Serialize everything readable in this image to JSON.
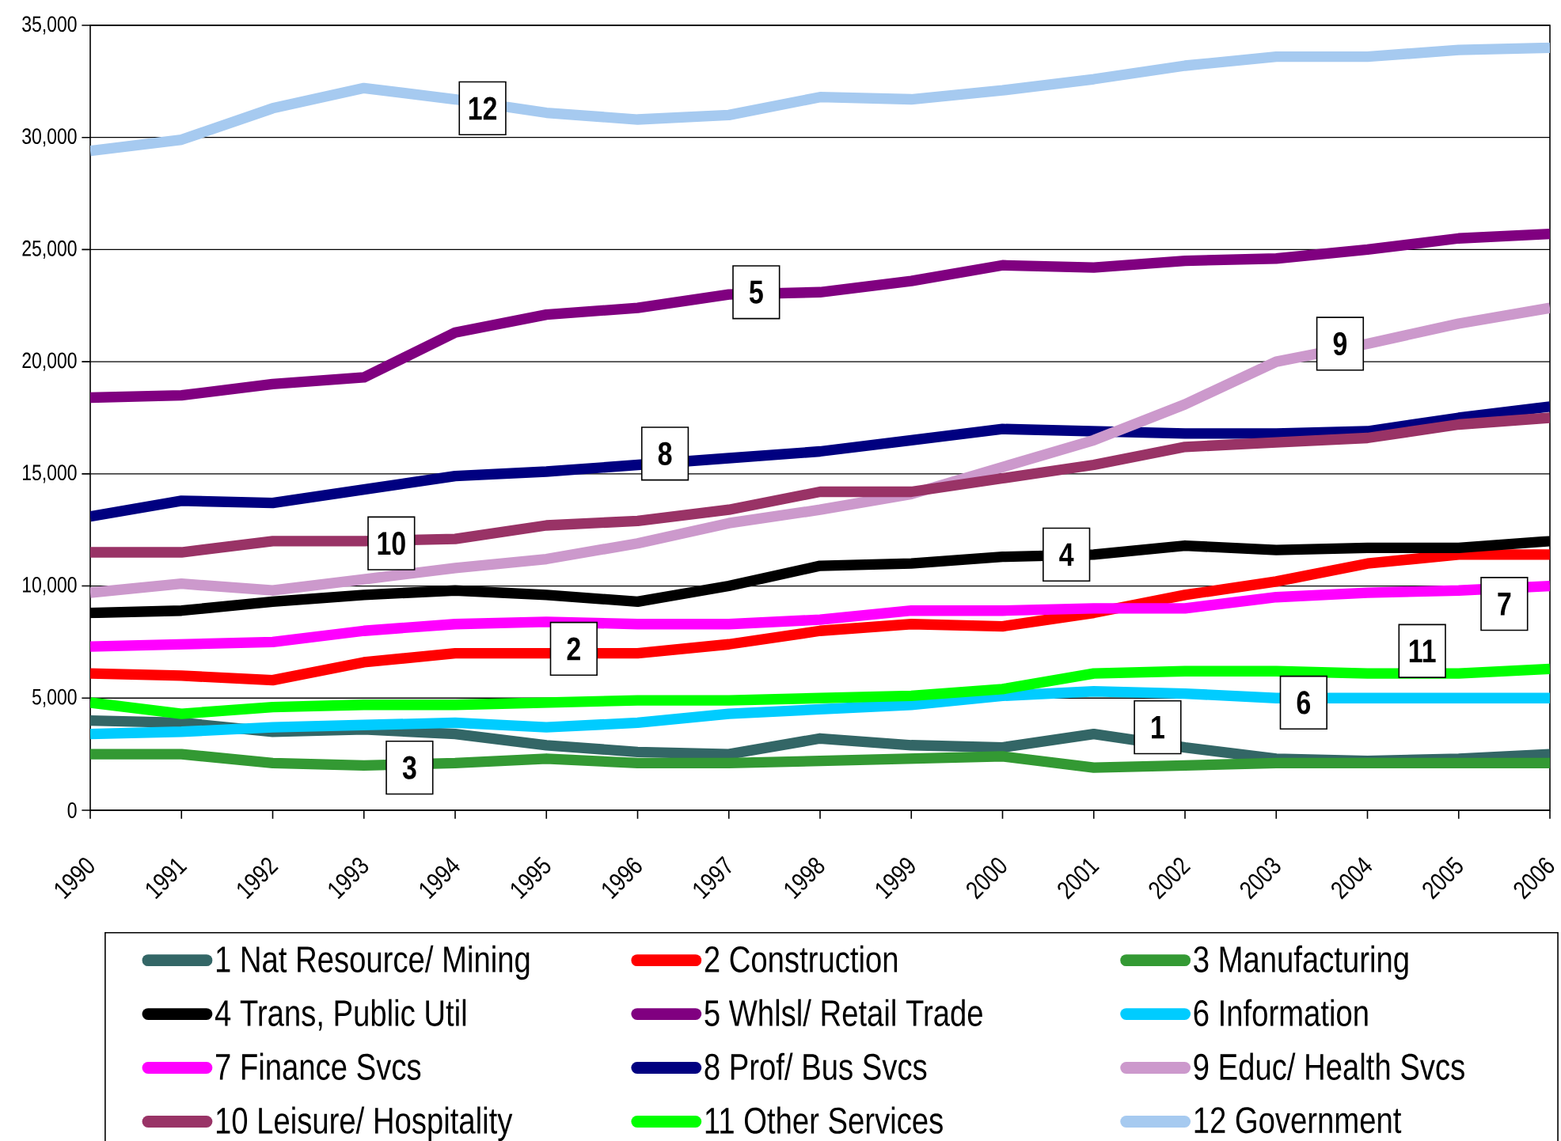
{
  "chart_data": {
    "type": "line",
    "x": [
      1990,
      1991,
      1992,
      1993,
      1994,
      1995,
      1996,
      1997,
      1998,
      1999,
      2000,
      2001,
      2002,
      2003,
      2004,
      2005,
      2006
    ],
    "xlim": [
      1990,
      2006
    ],
    "xticks": [
      1990,
      1991,
      1992,
      1993,
      1994,
      1995,
      1996,
      1997,
      1998,
      1999,
      2000,
      2001,
      2002,
      2003,
      2004,
      2005,
      2006
    ],
    "ylim": [
      0,
      35000
    ],
    "yticks": [
      0,
      {
        "value": 5000,
        "label": "5,000"
      },
      {
        "value": 10000,
        "label": "10,000"
      },
      {
        "value": 15000,
        "label": "15,000"
      },
      {
        "value": 20000,
        "label": "20,000"
      },
      {
        "value": 25000,
        "label": "25,000"
      },
      {
        "value": 30000,
        "label": "30,000"
      },
      {
        "value": 35000,
        "label": "35,000"
      }
    ],
    "grid": "y",
    "legend": "bottom",
    "line_style": "solid",
    "series": [
      {
        "name": "1 Nat Resource/ Mining",
        "color": "#336666",
        "values": [
          4000,
          3900,
          3500,
          3600,
          3400,
          2900,
          2600,
          2500,
          3200,
          2900,
          2800,
          3400,
          2800,
          2300,
          2200,
          2300,
          2500
        ]
      },
      {
        "name": "2 Construction",
        "color": "#ff0000",
        "values": [
          6100,
          6000,
          5800,
          6600,
          7000,
          7000,
          7000,
          7400,
          8000,
          8300,
          8200,
          8800,
          9600,
          10200,
          11000,
          11400,
          11400
        ]
      },
      {
        "name": "3 Manufacturing",
        "color": "#339933",
        "values": [
          2500,
          2500,
          2100,
          2000,
          2100,
          2300,
          2100,
          2100,
          2200,
          2300,
          2400,
          1900,
          2000,
          2100,
          2100,
          2100,
          2100
        ]
      },
      {
        "name": "4 Trans, Public Util",
        "color": "#000000",
        "values": [
          8800,
          8900,
          9300,
          9600,
          9800,
          9600,
          9300,
          10000,
          10900,
          11000,
          11300,
          11400,
          11800,
          11600,
          11700,
          11700,
          12000
        ]
      },
      {
        "name": "5 Whlsl/ Retail Trade",
        "color": "#800080",
        "values": [
          18400,
          18500,
          19000,
          19300,
          21300,
          22100,
          22400,
          23000,
          23100,
          23600,
          24300,
          24200,
          24500,
          24600,
          25000,
          25500,
          25700
        ]
      },
      {
        "name": "6 Information",
        "color": "#00ccff",
        "values": [
          3400,
          3500,
          3700,
          3800,
          3900,
          3700,
          3900,
          4300,
          4500,
          4700,
          5100,
          5300,
          5200,
          5000,
          5000,
          5000,
          5000
        ]
      },
      {
        "name": "7 Finance Svcs",
        "color": "#ff00ff",
        "values": [
          7300,
          7400,
          7500,
          8000,
          8300,
          8400,
          8300,
          8300,
          8500,
          8900,
          8900,
          9000,
          9000,
          9500,
          9700,
          9800,
          10000
        ]
      },
      {
        "name": "8 Prof/ Bus Svcs",
        "color": "#000080",
        "values": [
          13100,
          13800,
          13700,
          14300,
          14900,
          15100,
          15400,
          15700,
          16000,
          16500,
          17000,
          16900,
          16800,
          16800,
          16900,
          17500,
          18000
        ]
      },
      {
        "name": "9 Educ/ Health Svcs",
        "color": "#cc99cc",
        "values": [
          9700,
          10100,
          9800,
          10300,
          10800,
          11200,
          11900,
          12800,
          13400,
          14100,
          15300,
          16500,
          18100,
          20000,
          20800,
          21700,
          22400
        ]
      },
      {
        "name": "10 Leisure/ Hospitality",
        "color": "#993366",
        "values": [
          11500,
          11500,
          12000,
          12000,
          12100,
          12700,
          12900,
          13400,
          14200,
          14200,
          14800,
          15400,
          16200,
          16400,
          16600,
          17200,
          17500
        ]
      },
      {
        "name": "11 Other Services",
        "color": "#00ff00",
        "values": [
          4800,
          4300,
          4600,
          4700,
          4700,
          4800,
          4900,
          4900,
          5000,
          5100,
          5400,
          6100,
          6200,
          6200,
          6100,
          6100,
          6300
        ]
      },
      {
        "name": "12 Government",
        "color": "#a6caf0",
        "values": [
          29400,
          29900,
          31300,
          32200,
          31700,
          31100,
          30800,
          31000,
          31800,
          31700,
          32100,
          32600,
          33200,
          33600,
          33600,
          33900,
          34000
        ]
      }
    ],
    "annotations": [
      {
        "text": "12",
        "x": 1994.3,
        "y": 31300
      },
      {
        "text": "5",
        "x": 1997.3,
        "y": 23100
      },
      {
        "text": "9",
        "x": 2003.7,
        "y": 20800
      },
      {
        "text": "8",
        "x": 1996.3,
        "y": 15900
      },
      {
        "text": "10",
        "x": 1993.3,
        "y": 11900
      },
      {
        "text": "4",
        "x": 2000.7,
        "y": 11400
      },
      {
        "text": "2",
        "x": 1995.3,
        "y": 7200
      },
      {
        "text": "7",
        "x": 2005.5,
        "y": 9200
      },
      {
        "text": "11",
        "x": 2004.6,
        "y": 7100
      },
      {
        "text": "6",
        "x": 2003.3,
        "y": 4800
      },
      {
        "text": "1",
        "x": 2001.7,
        "y": 3700
      },
      {
        "text": "3",
        "x": 1993.5,
        "y": 1900
      }
    ]
  }
}
